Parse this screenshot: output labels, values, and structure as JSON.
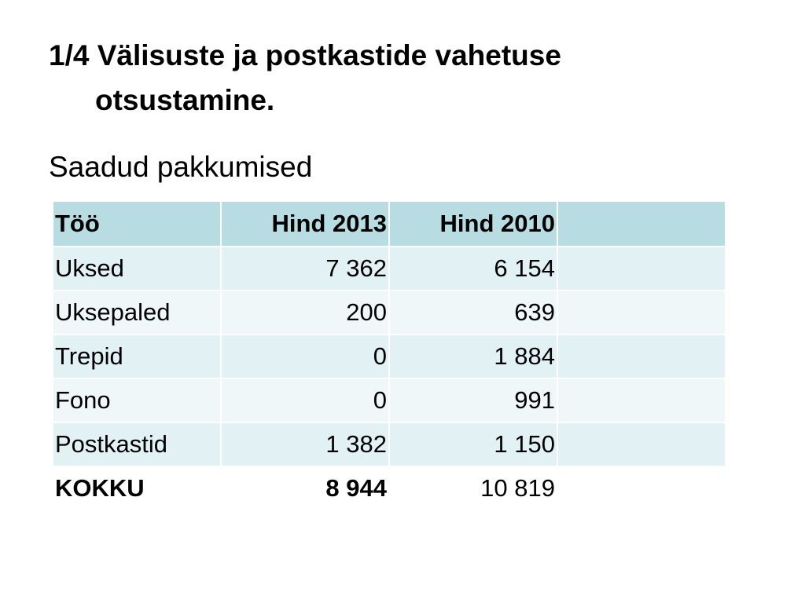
{
  "slide": {
    "title_line1": "1/4 Välisuste ja postkastide vahetuse",
    "title_line2": "otsustamine.",
    "subtitle": "Saadud pakkumised"
  },
  "table": {
    "headers": [
      "Töö",
      "Hind 2013",
      "Hind 2010",
      ""
    ],
    "rows": [
      [
        "Uksed",
        "7 362",
        "6 154",
        ""
      ],
      [
        "Uksepaled",
        "200",
        "639",
        ""
      ],
      [
        "Trepid",
        "0",
        "1 884",
        ""
      ],
      [
        "Fono",
        "0",
        "991",
        ""
      ],
      [
        "Postkastid",
        "1 382",
        "1 150",
        ""
      ],
      [
        "KOKKU",
        "8 944",
        "10 819",
        ""
      ]
    ]
  },
  "colors": {
    "header_bg": "#b7dde2",
    "row_odd_bg": "#e2f1f3",
    "row_even_bg": "#eff7f8"
  }
}
